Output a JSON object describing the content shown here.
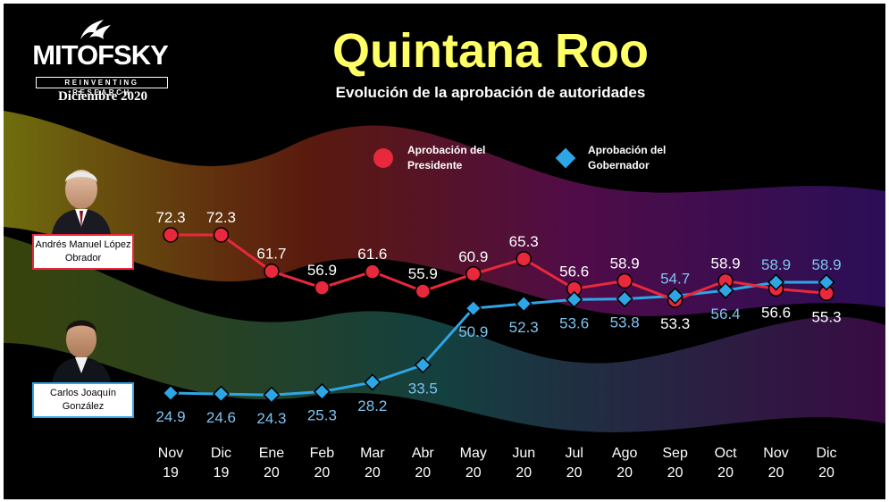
{
  "header": {
    "brand": "MITOFSKY",
    "brand_tagline": "REINVENTING RESEARCH",
    "date": "Diciembre 2020",
    "title": "Quintana Roo",
    "subtitle": "Evolución de la aprobación de autoridades"
  },
  "people": {
    "president": "Andrés Manuel López Obrador",
    "governor": "Carlos Joaquín González"
  },
  "colors": {
    "president": "#e8283c",
    "governor": "#2ea6e6",
    "title": "#ffff66"
  },
  "chart_data": {
    "type": "line",
    "title": "Quintana Roo",
    "subtitle": "Evolución de la aprobación de autoridades",
    "categories": [
      "Nov 19",
      "Dic 19",
      "Ene 20",
      "Feb 20",
      "Mar 20",
      "Abr 20",
      "May 20",
      "Jun 20",
      "Jul 20",
      "Ago 20",
      "Sep 20",
      "Oct 20",
      "Nov 20",
      "Dic 20"
    ],
    "series": [
      {
        "name": "Aprobación del Presidente",
        "marker": "circle",
        "color": "#e8283c",
        "values": [
          72.3,
          72.3,
          61.7,
          56.9,
          61.6,
          55.9,
          60.9,
          65.3,
          56.6,
          58.9,
          53.3,
          58.9,
          56.6,
          55.3
        ]
      },
      {
        "name": "Aprobación del Gobernador",
        "marker": "diamond",
        "color": "#2ea6e6",
        "values": [
          24.9,
          24.6,
          24.3,
          25.3,
          28.2,
          33.5,
          50.9,
          52.3,
          53.6,
          53.8,
          54.7,
          56.4,
          58.9,
          58.9
        ]
      }
    ],
    "xlabel": "",
    "ylabel": "",
    "grid": false,
    "legend_position": "top"
  }
}
